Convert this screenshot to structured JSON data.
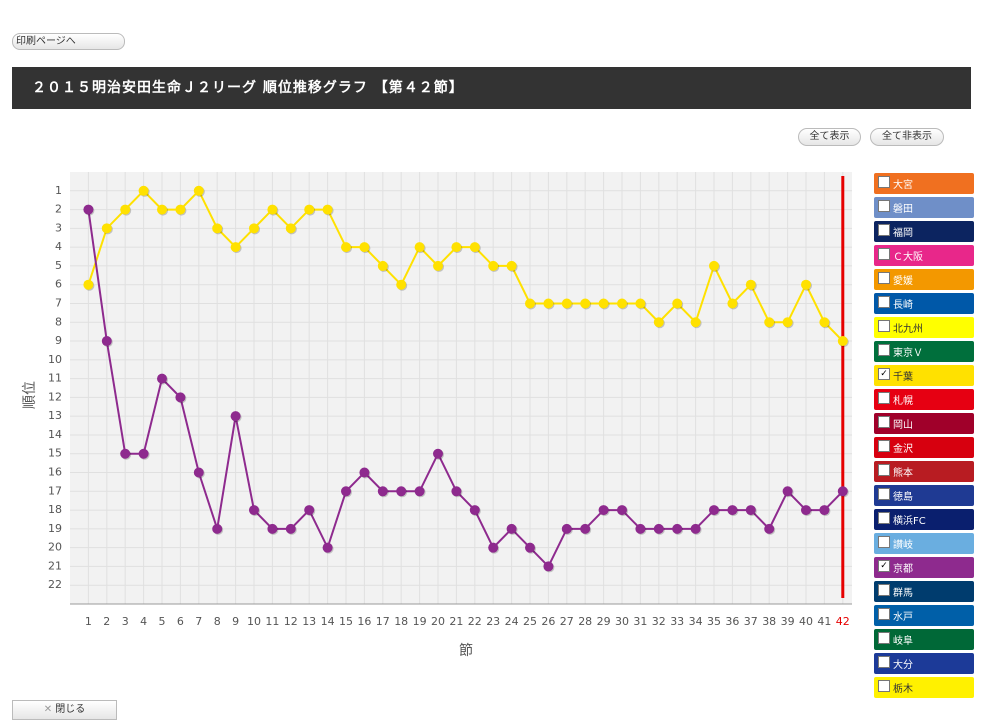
{
  "print_button": "印刷ページへ",
  "header_title": "２０１５明治安田生命Ｊ２リーグ 順位推移グラフ 【第４２節】",
  "show_all": "全て表示",
  "hide_all": "全て非表示",
  "close_button": "閉じる",
  "chart_data": {
    "type": "line",
    "x_label": "節",
    "y_label": "順位",
    "xlim": [
      0,
      42.5
    ],
    "xticks": [
      1,
      2,
      3,
      4,
      5,
      6,
      7,
      8,
      9,
      10,
      11,
      12,
      13,
      14,
      15,
      16,
      17,
      18,
      19,
      20,
      21,
      22,
      23,
      24,
      25,
      26,
      27,
      28,
      29,
      30,
      31,
      32,
      33,
      34,
      35,
      36,
      37,
      38,
      39,
      40,
      41,
      42
    ],
    "ylim": [
      23,
      0
    ],
    "yticks": [
      1,
      2,
      3,
      4,
      5,
      6,
      7,
      8,
      9,
      10,
      11,
      12,
      13,
      14,
      15,
      16,
      17,
      18,
      19,
      20,
      21,
      22
    ],
    "grid": true,
    "current_round": 42,
    "current_color": "#e60000",
    "x": [
      1,
      2,
      3,
      4,
      5,
      6,
      7,
      8,
      9,
      10,
      11,
      12,
      13,
      14,
      15,
      16,
      17,
      18,
      19,
      20,
      21,
      22,
      23,
      24,
      25,
      26,
      27,
      28,
      29,
      30,
      31,
      32,
      33,
      34,
      35,
      36,
      37,
      38,
      39,
      40,
      41,
      42
    ],
    "series": [
      {
        "name": "千葉",
        "color": "#ffe100",
        "values": [
          6,
          3,
          2,
          1,
          2,
          2,
          1,
          3,
          4,
          3,
          2,
          3,
          2,
          2,
          4,
          4,
          5,
          6,
          4,
          5,
          4,
          4,
          5,
          5,
          7,
          7,
          7,
          7,
          7,
          7,
          7,
          8,
          7,
          8,
          5,
          7,
          6,
          8,
          8,
          6,
          8,
          9
        ]
      },
      {
        "name": "京都",
        "color": "#8e2a8e",
        "values": [
          2,
          9,
          15,
          15,
          11,
          12,
          16,
          19,
          13,
          18,
          19,
          19,
          18,
          20,
          17,
          16,
          17,
          17,
          17,
          15,
          17,
          18,
          20,
          19,
          20,
          21,
          19,
          19,
          18,
          18,
          19,
          19,
          19,
          19,
          18,
          18,
          18,
          19,
          17,
          18,
          18,
          17
        ]
      }
    ],
    "legend": [
      {
        "name": "大宮",
        "color": "#f07020"
      },
      {
        "name": "磐田",
        "color": "#6f8fc8"
      },
      {
        "name": "福岡",
        "color": "#0c2460"
      },
      {
        "name": "Ｃ大阪",
        "color": "#e8278a"
      },
      {
        "name": "愛媛",
        "color": "#f39800"
      },
      {
        "name": "長崎",
        "color": "#0058a8"
      },
      {
        "name": "北九州",
        "color": "#ffff00"
      },
      {
        "name": "東京Ｖ",
        "color": "#006f3c"
      },
      {
        "name": "千葉",
        "color": "#ffe100"
      },
      {
        "name": "札幌",
        "color": "#e60012"
      },
      {
        "name": "岡山",
        "color": "#a0002a"
      },
      {
        "name": "金沢",
        "color": "#d7000f"
      },
      {
        "name": "熊本",
        "color": "#b81c22"
      },
      {
        "name": "徳島",
        "color": "#1f3a93"
      },
      {
        "name": "横浜FC",
        "color": "#0a1f6e"
      },
      {
        "name": "讃岐",
        "color": "#6aaee0"
      },
      {
        "name": "京都",
        "color": "#8e2a8e"
      },
      {
        "name": "群馬",
        "color": "#003c6e"
      },
      {
        "name": "水戸",
        "color": "#005fa8"
      },
      {
        "name": "岐阜",
        "color": "#006837"
      },
      {
        "name": "大分",
        "color": "#1c3a98"
      },
      {
        "name": "栃木",
        "color": "#fff100"
      }
    ]
  }
}
